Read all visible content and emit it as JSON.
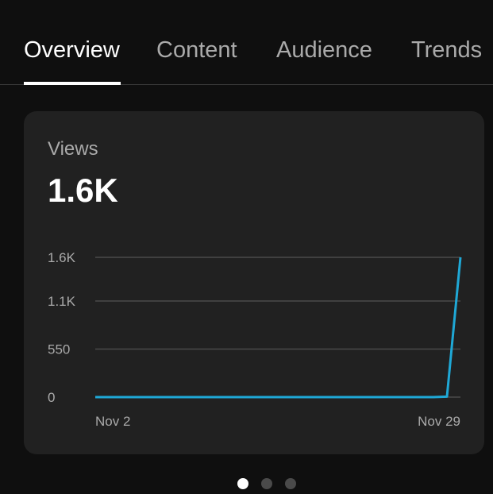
{
  "tabs": [
    {
      "label": "Overview",
      "active": true
    },
    {
      "label": "Content",
      "active": false
    },
    {
      "label": "Audience",
      "active": false
    },
    {
      "label": "Trends",
      "active": false
    }
  ],
  "card": {
    "metric_label": "Views",
    "metric_value": "1.6K"
  },
  "chart_data": {
    "type": "line",
    "x_labels": [
      "Nov 2",
      "Nov 29"
    ],
    "y_ticks": [
      {
        "label": "0",
        "value": 0
      },
      {
        "label": "550",
        "value": 550
      },
      {
        "label": "1.1K",
        "value": 1100
      },
      {
        "label": "1.6K",
        "value": 1600
      }
    ],
    "ylim": [
      0,
      1600
    ],
    "series": [
      {
        "values": [
          0,
          0,
          0,
          0,
          0,
          0,
          0,
          0,
          0,
          0,
          0,
          0,
          0,
          0,
          0,
          0,
          0,
          0,
          0,
          0,
          0,
          0,
          0,
          0,
          0,
          0,
          5,
          1600
        ]
      }
    ],
    "line_color": "#1fa8d6",
    "grid": true
  },
  "pager": {
    "count": 3,
    "active_index": 0
  },
  "colors": {
    "background": "#0f0f0f",
    "card": "#212121",
    "accent": "#1fa8d6"
  }
}
